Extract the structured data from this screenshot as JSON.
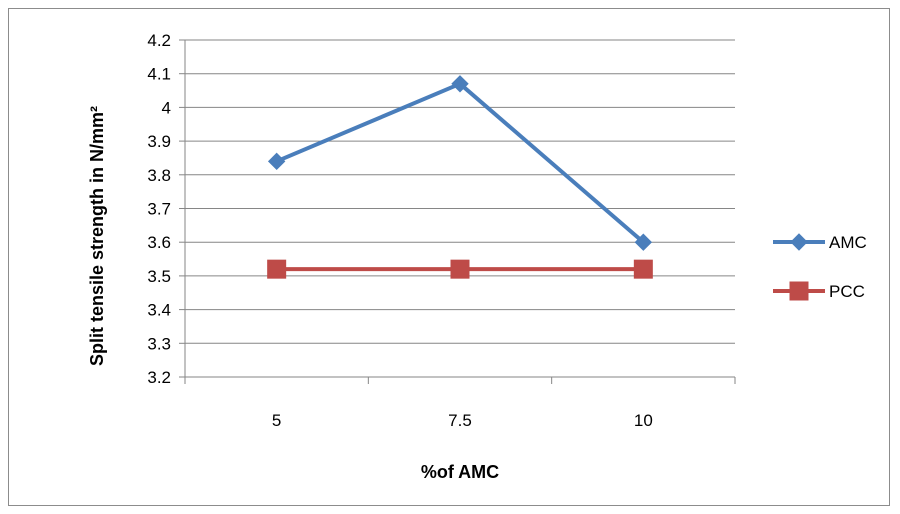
{
  "chart_data": {
    "type": "line",
    "categories": [
      "5",
      "7.5",
      "10"
    ],
    "series": [
      {
        "name": "AMC",
        "values": [
          3.84,
          4.07,
          3.6
        ],
        "color": "#4a7ebb",
        "marker": "diamond"
      },
      {
        "name": "PCC",
        "values": [
          3.52,
          3.52,
          3.52
        ],
        "color": "#be4b48",
        "marker": "square"
      }
    ],
    "xlabel": "%of AMC",
    "ylabel": "Split tensile strength in N/mm²",
    "ylim": [
      3.2,
      4.2
    ],
    "yticks": [
      "3.2",
      "3.3",
      "3.4",
      "3.5",
      "3.6",
      "3.7",
      "3.8",
      "3.9",
      "4",
      "4.1",
      "4.2"
    ],
    "grid": "horizontal",
    "legend": "right"
  }
}
